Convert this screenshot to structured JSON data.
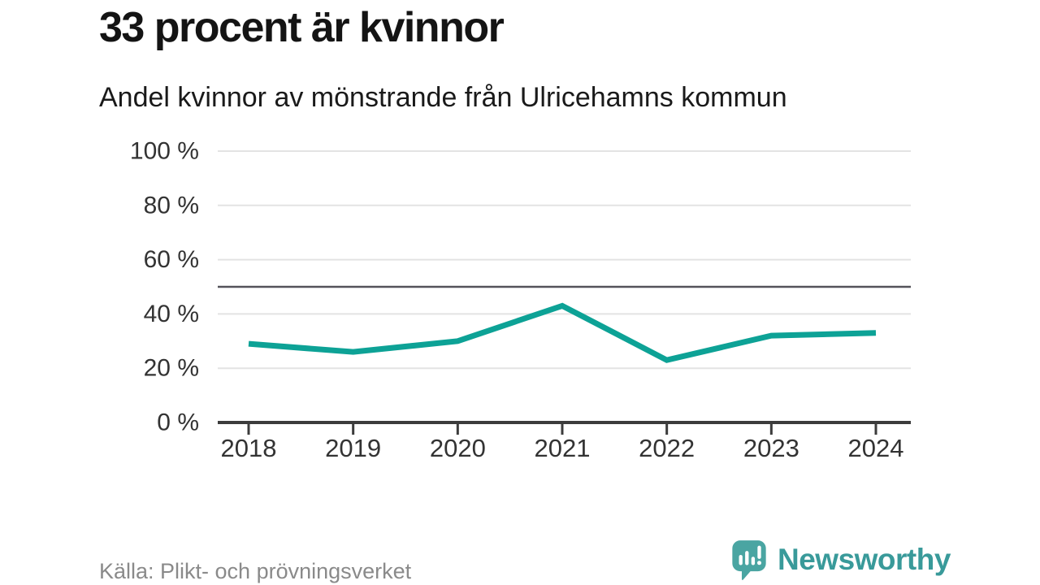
{
  "header": {
    "title": "33 procent är kvinnor",
    "subtitle": "Andel kvinnor av mönstrande från Ulricehamns kommun"
  },
  "chart_data": {
    "type": "line",
    "title": "33 procent är kvinnor",
    "subtitle": "Andel kvinnor av mönstrande från Ulricehamns kommun",
    "x": [
      "2018",
      "2019",
      "2020",
      "2021",
      "2022",
      "2023",
      "2024"
    ],
    "values": [
      29,
      26,
      30,
      43,
      23,
      32,
      33
    ],
    "xlabel": "",
    "ylabel": "",
    "ylim": [
      0,
      100
    ],
    "yticks": [
      0,
      20,
      40,
      60,
      80,
      100
    ],
    "ytick_suffix": " %",
    "reference_line": 50,
    "grid": true,
    "legend": "none",
    "colors": {
      "line": "#0da296",
      "grid": "#e3e3e3",
      "axis": "#3c3c3c",
      "reference": "#54535a",
      "labels": "#333333"
    }
  },
  "footer": {
    "source": "Källa: Plikt- och prövningsverket",
    "brand": "Newsworthy",
    "brand_color": "#399a9a",
    "logo_icon": "bar-chart-speech-bubble-icon"
  }
}
